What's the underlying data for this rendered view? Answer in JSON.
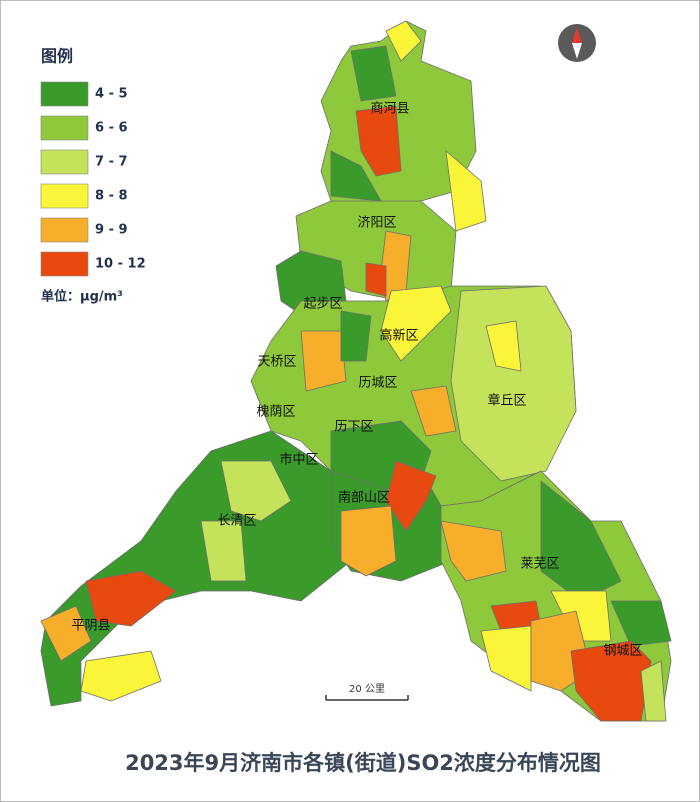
{
  "legend": {
    "title": "图例",
    "items": [
      {
        "label": "4 - 5",
        "color": "#3a9a2a"
      },
      {
        "label": "6 - 6",
        "color": "#8dc93a"
      },
      {
        "label": "7 - 7",
        "color": "#c4e25a"
      },
      {
        "label": "8 - 8",
        "color": "#fbf53a"
      },
      {
        "label": "9 - 9",
        "color": "#f7ae2a"
      },
      {
        "label": "10 - 12",
        "color": "#e8490f"
      }
    ],
    "unit": "单位：μg/m³"
  },
  "districts": [
    "商河县",
    "济阳区",
    "起步区",
    "高新区",
    "天桥区",
    "历城区",
    "章丘区",
    "槐荫区",
    "历下区",
    "市中区",
    "南部山区",
    "长清区",
    "莱芜区",
    "平阴县",
    "钢城区"
  ],
  "scale": "20 公里",
  "title": "2023年9月济南市各镇(街道)SO2浓度分布情况图"
}
